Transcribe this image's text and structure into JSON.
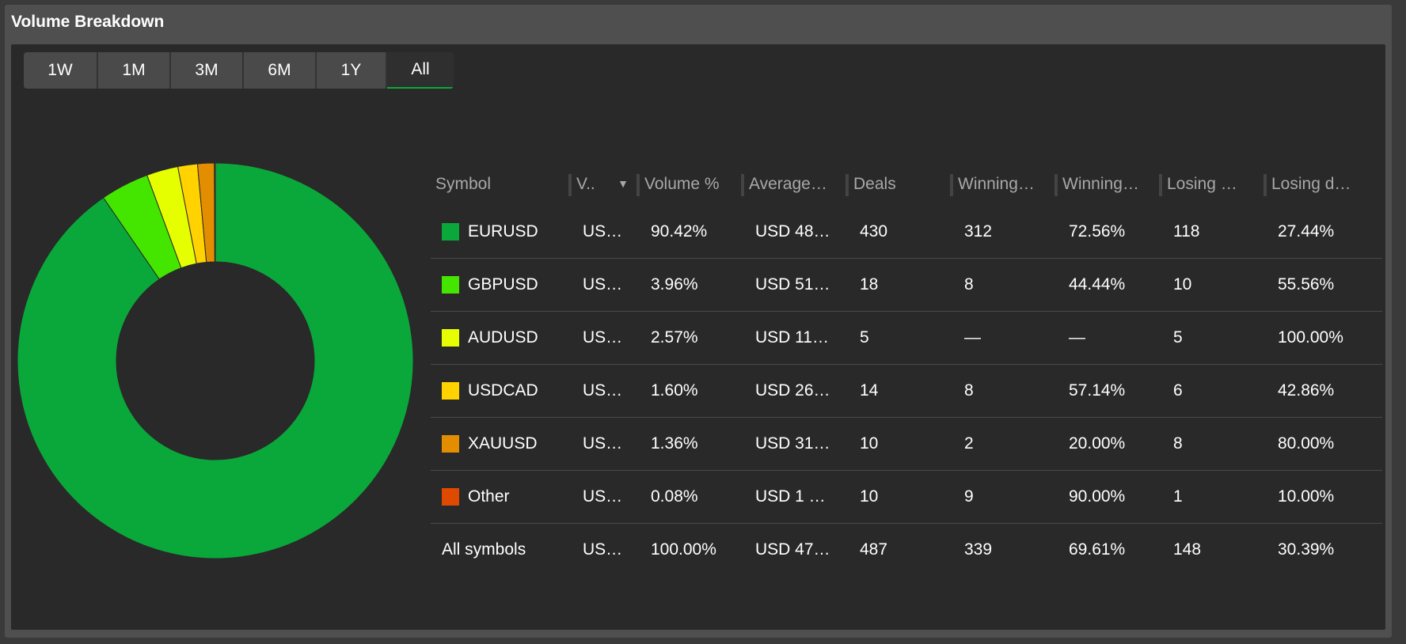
{
  "window": {
    "title": "Volume Breakdown"
  },
  "tabs": [
    {
      "label": "1W",
      "active": false
    },
    {
      "label": "1M",
      "active": false
    },
    {
      "label": "3M",
      "active": false
    },
    {
      "label": "6M",
      "active": false
    },
    {
      "label": "1Y",
      "active": false
    },
    {
      "label": "All",
      "active": true
    }
  ],
  "table": {
    "headers": [
      "Symbol",
      "V..",
      "Volume %",
      "Average…",
      "Deals",
      "Winning…",
      "Winning…",
      "Losing …",
      "Losing d…"
    ],
    "sorted_column_index": 1,
    "rows": [
      {
        "symbol": "EURUSD",
        "color": "#0aa83a",
        "volume": "US…",
        "volume_pct": "90.42%",
        "average": "USD 48…",
        "deals": "430",
        "winning": "312",
        "winning_pct": "72.56%",
        "losing": "118",
        "losing_pct": "27.44%"
      },
      {
        "symbol": "GBPUSD",
        "color": "#44e600",
        "volume": "US…",
        "volume_pct": "3.96%",
        "average": "USD 51…",
        "deals": "18",
        "winning": "8",
        "winning_pct": "44.44%",
        "losing": "10",
        "losing_pct": "55.56%"
      },
      {
        "symbol": "AUDUSD",
        "color": "#e5ff00",
        "volume": "US…",
        "volume_pct": "2.57%",
        "average": "USD 11…",
        "deals": "5",
        "winning": "—",
        "winning_pct": "—",
        "losing": "5",
        "losing_pct": "100.00%"
      },
      {
        "symbol": "USDCAD",
        "color": "#ffd200",
        "volume": "US…",
        "volume_pct": "1.60%",
        "average": "USD 26…",
        "deals": "14",
        "winning": "8",
        "winning_pct": "57.14%",
        "losing": "6",
        "losing_pct": "42.86%"
      },
      {
        "symbol": "XAUUSD",
        "color": "#e28e00",
        "volume": "US…",
        "volume_pct": "1.36%",
        "average": "USD 31…",
        "deals": "10",
        "winning": "2",
        "winning_pct": "20.00%",
        "losing": "8",
        "losing_pct": "80.00%"
      },
      {
        "symbol": "Other",
        "color": "#e04a00",
        "volume": "US…",
        "volume_pct": "0.08%",
        "average": "USD 1 …",
        "deals": "10",
        "winning": "9",
        "winning_pct": "90.00%",
        "losing": "1",
        "losing_pct": "10.00%"
      }
    ],
    "total": {
      "symbol": "All symbols",
      "volume": "US…",
      "volume_pct": "100.00%",
      "average": "USD 47…",
      "deals": "487",
      "winning": "339",
      "winning_pct": "69.61%",
      "losing": "148",
      "losing_pct": "30.39%"
    }
  },
  "chart_data": {
    "type": "pie",
    "style": "donut",
    "categories": [
      "EURUSD",
      "GBPUSD",
      "AUDUSD",
      "USDCAD",
      "XAUUSD",
      "Other"
    ],
    "values": [
      90.42,
      3.96,
      2.57,
      1.6,
      1.36,
      0.08
    ],
    "colors": [
      "#0aa83a",
      "#44e600",
      "#e5ff00",
      "#ffd200",
      "#e28e00",
      "#e04a00"
    ],
    "start_angle": "top",
    "direction": "clockwise"
  }
}
